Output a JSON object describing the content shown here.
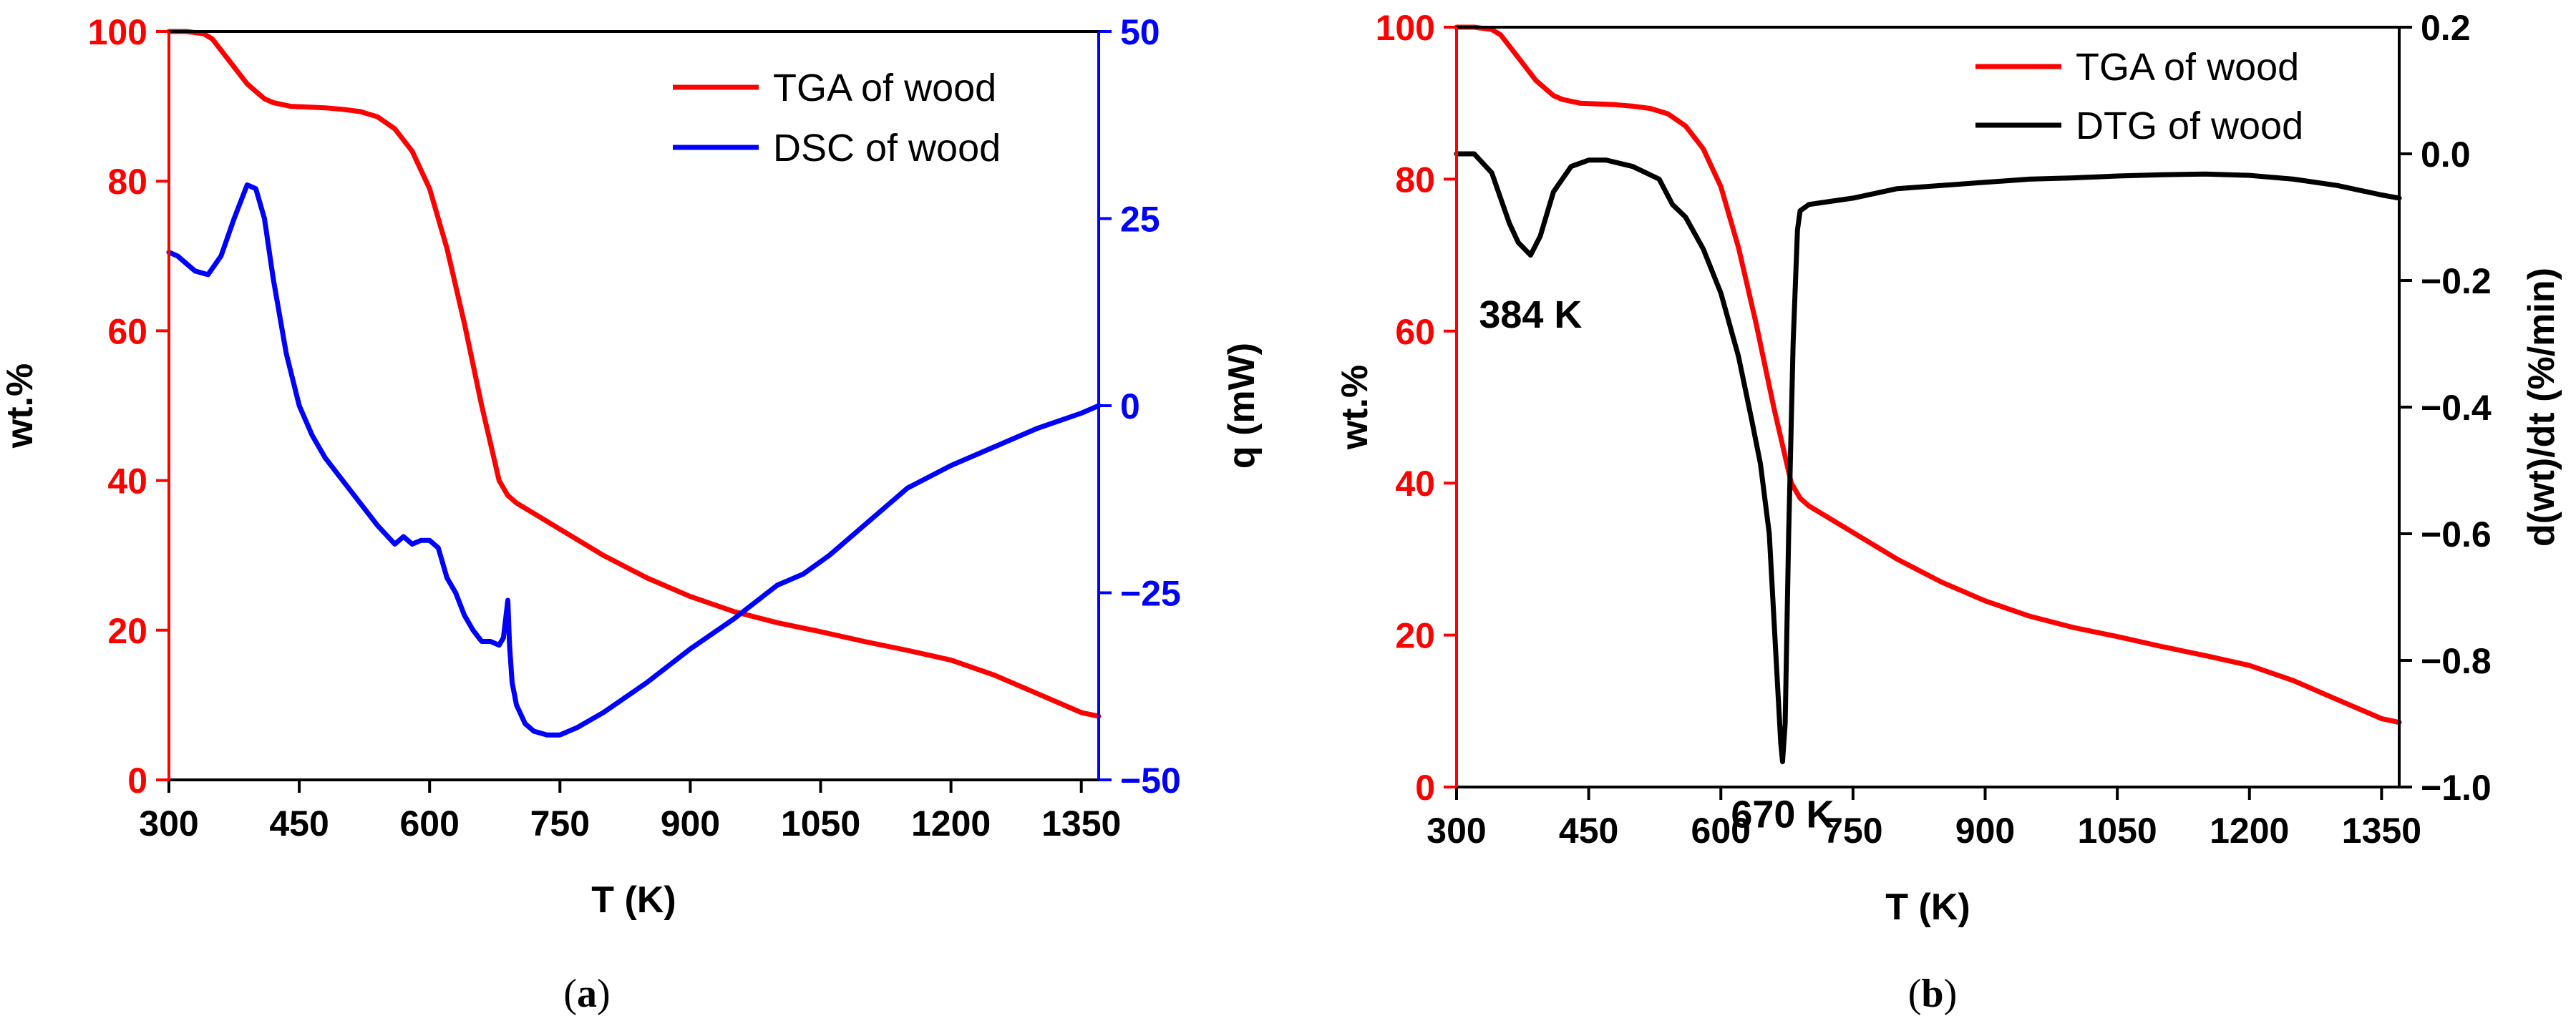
{
  "figure": {
    "panel_a_caption_open": "(",
    "panel_a_caption_letter": "a",
    "panel_a_caption_close": ")",
    "panel_b_caption_open": "(",
    "panel_b_caption_letter": "b",
    "panel_b_caption_close": ")"
  },
  "colors": {
    "tga": "#ff0000",
    "dsc": "#0000ff",
    "dtg": "#000000",
    "axis": "#000000"
  },
  "chart_data": [
    {
      "panel": "a",
      "type": "line",
      "xlabel": "T (K)",
      "ylabel_left": "wt.%",
      "ylabel_right": "q  (mW)",
      "xlim": [
        300,
        1370
      ],
      "ylim_left": [
        0,
        100
      ],
      "ylim_right": [
        -50,
        50
      ],
      "xticks": [
        300,
        450,
        600,
        750,
        900,
        1050,
        1200,
        1350
      ],
      "xtick_labels": [
        "300",
        "450",
        "600",
        "750",
        "900",
        "1050",
        "1200",
        "1350"
      ],
      "yticks_left": [
        0,
        20,
        40,
        60,
        80,
        100
      ],
      "ytick_labels_left": [
        "0",
        "20",
        "40",
        "60",
        "80",
        "100"
      ],
      "yticks_right": [
        -50,
        -25,
        0,
        25,
        50
      ],
      "ytick_labels_right": [
        "−50",
        "−25",
        "0",
        "25",
        "50"
      ],
      "legend": [
        "TGA of wood",
        "DSC of wood"
      ],
      "series": [
        {
          "name": "TGA of wood",
          "axis": "left",
          "x": [
            300,
            320,
            340,
            350,
            360,
            370,
            380,
            390,
            400,
            410,
            420,
            440,
            460,
            480,
            500,
            520,
            540,
            560,
            580,
            600,
            620,
            640,
            660,
            670,
            680,
            690,
            700,
            750,
            800,
            850,
            900,
            950,
            1000,
            1050,
            1100,
            1150,
            1200,
            1250,
            1300,
            1350,
            1370
          ],
          "y": [
            100,
            100,
            99.7,
            99,
            97.5,
            96,
            94.5,
            93,
            92,
            91,
            90.5,
            90,
            89.9,
            89.8,
            89.6,
            89.3,
            88.6,
            87,
            84,
            79,
            71,
            61,
            50,
            45,
            40,
            38,
            37,
            33.5,
            30,
            27,
            24.5,
            22.5,
            21,
            19.8,
            18.5,
            17.3,
            16,
            14,
            11.5,
            9,
            8.5
          ]
        },
        {
          "name": "DSC of wood",
          "axis": "right",
          "x": [
            300,
            310,
            320,
            330,
            345,
            360,
            375,
            390,
            400,
            410,
            420,
            435,
            450,
            465,
            480,
            500,
            520,
            540,
            560,
            570,
            580,
            590,
            600,
            610,
            620,
            630,
            640,
            650,
            660,
            670,
            680,
            685,
            690,
            692,
            695,
            700,
            710,
            720,
            735,
            750,
            770,
            800,
            850,
            900,
            950,
            1000,
            1030,
            1060,
            1100,
            1150,
            1200,
            1250,
            1300,
            1350,
            1370
          ],
          "y": [
            20.5,
            20,
            19,
            18,
            17.5,
            20,
            25,
            29.5,
            29,
            25,
            17,
            7,
            0,
            -4,
            -7,
            -10,
            -13,
            -16,
            -18.5,
            -17.5,
            -18.5,
            -18,
            -18,
            -19,
            -23,
            -25,
            -28,
            -30,
            -31.5,
            -31.5,
            -32,
            -31,
            -26,
            -32,
            -37,
            -40,
            -42.5,
            -43.5,
            -44,
            -44,
            -43,
            -41,
            -37,
            -32.5,
            -28.5,
            -24,
            -22.5,
            -20,
            -16,
            -11,
            -8,
            -5.5,
            -3,
            -1,
            0
          ]
        }
      ]
    },
    {
      "panel": "b",
      "type": "line",
      "xlabel": "T (K)",
      "ylabel_left": "wt.%",
      "ylabel_right": "d(wt)/dt (%/min)",
      "xlim": [
        300,
        1370
      ],
      "ylim_left": [
        0,
        100
      ],
      "ylim_right": [
        -1.0,
        0.2
      ],
      "xticks": [
        300,
        450,
        600,
        750,
        900,
        1050,
        1200,
        1350
      ],
      "xtick_labels": [
        "300",
        "450",
        "600",
        "750",
        "900",
        "1050",
        "1200",
        "1350"
      ],
      "yticks_left": [
        0,
        20,
        40,
        60,
        80,
        100
      ],
      "ytick_labels_left": [
        "0",
        "20",
        "40",
        "60",
        "80",
        "100"
      ],
      "yticks_right": [
        -1.0,
        -0.8,
        -0.6,
        -0.4,
        -0.2,
        0.0,
        0.2
      ],
      "ytick_labels_right": [
        "−1.0",
        "−0.8",
        "−0.6",
        "−0.4",
        "−0.2",
        "0.0",
        "0.2"
      ],
      "legend": [
        "TGA of wood",
        "DTG of wood"
      ],
      "annotations": [
        {
          "text": "384 K",
          "x": 384,
          "y": -0.19
        },
        {
          "text": "670 K",
          "x": 670,
          "y": -0.96
        }
      ],
      "series": [
        {
          "name": "TGA of wood",
          "axis": "left",
          "x": [
            300,
            320,
            340,
            350,
            360,
            370,
            380,
            390,
            400,
            410,
            420,
            440,
            460,
            480,
            500,
            520,
            540,
            560,
            580,
            600,
            620,
            640,
            660,
            670,
            680,
            690,
            700,
            750,
            800,
            850,
            900,
            950,
            1000,
            1050,
            1100,
            1150,
            1200,
            1250,
            1300,
            1350,
            1370
          ],
          "y": [
            100,
            100,
            99.7,
            99,
            97.5,
            96,
            94.5,
            93,
            92,
            91,
            90.5,
            90,
            89.9,
            89.8,
            89.6,
            89.3,
            88.6,
            87,
            84,
            79,
            71,
            61,
            50,
            45,
            40,
            38,
            37,
            33.5,
            30,
            27,
            24.5,
            22.5,
            21,
            19.8,
            18.5,
            17.3,
            16,
            14,
            11.5,
            9,
            8.5
          ]
        },
        {
          "name": "DTG of wood",
          "axis": "right",
          "x": [
            300,
            320,
            340,
            350,
            360,
            370,
            384,
            395,
            410,
            430,
            450,
            470,
            500,
            530,
            545,
            560,
            580,
            600,
            620,
            635,
            645,
            655,
            662,
            668,
            670,
            673,
            677,
            682,
            687,
            690,
            700,
            750,
            800,
            850,
            900,
            950,
            1000,
            1050,
            1100,
            1150,
            1200,
            1250,
            1300,
            1350,
            1370
          ],
          "y": [
            0.0,
            0.0,
            -0.03,
            -0.07,
            -0.11,
            -0.14,
            -0.16,
            -0.13,
            -0.06,
            -0.02,
            -0.01,
            -0.01,
            -0.02,
            -0.04,
            -0.08,
            -0.1,
            -0.15,
            -0.22,
            -0.32,
            -0.42,
            -0.49,
            -0.6,
            -0.78,
            -0.93,
            -0.96,
            -0.9,
            -0.6,
            -0.3,
            -0.12,
            -0.09,
            -0.08,
            -0.07,
            -0.055,
            -0.05,
            -0.045,
            -0.04,
            -0.038,
            -0.035,
            -0.033,
            -0.032,
            -0.034,
            -0.04,
            -0.05,
            -0.065,
            -0.07
          ]
        }
      ]
    }
  ]
}
